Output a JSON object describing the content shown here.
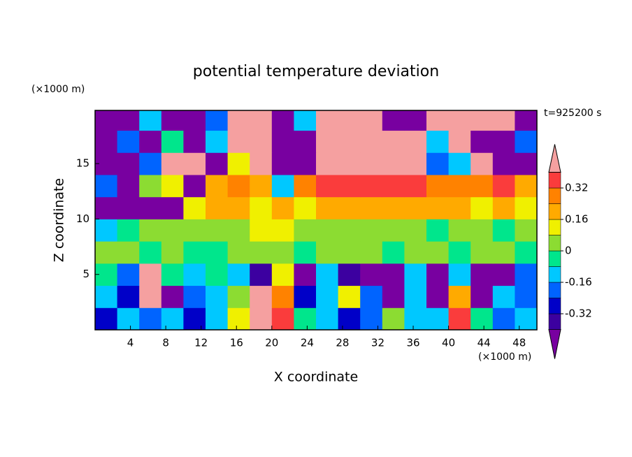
{
  "chart_data": {
    "type": "contour",
    "title": "potential temperature deviation",
    "x_label": "X coordinate",
    "y_label": "Z coordinate",
    "x_unit": "(×1000 m)",
    "y_unit": "(×1000 m)",
    "time_label": "t=925200 s",
    "xlim": [
      0,
      50
    ],
    "ylim": [
      0,
      19.8
    ],
    "xticks": [
      4,
      8,
      12,
      16,
      20,
      24,
      28,
      32,
      36,
      40,
      44,
      48
    ],
    "yticks": [
      5,
      10,
      15
    ],
    "x_edges": [
      0,
      2.5,
      5,
      7.5,
      10,
      12.5,
      15,
      17.5,
      20,
      22.5,
      25,
      27.5,
      30,
      32.5,
      35,
      37.5,
      40,
      42.5,
      45,
      47.5,
      50
    ],
    "z_edges": [
      0,
      2,
      4,
      6,
      8,
      10,
      12,
      14,
      16,
      18,
      19.8
    ],
    "z": [
      [
        -0.28,
        -0.12,
        -0.2,
        -0.12,
        -0.28,
        -0.12,
        0.12,
        0.5,
        0.36,
        -0.04,
        -0.12,
        -0.28,
        -0.2,
        0.04,
        -0.12,
        -0.12,
        0.36,
        -0.04,
        -0.2,
        -0.12
      ],
      [
        -0.12,
        -0.28,
        0.5,
        -0.5,
        -0.2,
        -0.12,
        0.04,
        0.5,
        0.28,
        -0.28,
        -0.12,
        0.12,
        -0.2,
        -0.5,
        -0.12,
        -0.5,
        0.2,
        -0.5,
        -0.12,
        -0.2
      ],
      [
        -0.04,
        -0.2,
        0.5,
        -0.04,
        -0.12,
        -0.04,
        -0.12,
        -0.36,
        0.12,
        -0.5,
        -0.12,
        -0.36,
        -0.5,
        -0.5,
        -0.12,
        -0.5,
        -0.12,
        -0.5,
        -0.5,
        -0.2
      ],
      [
        0.04,
        0.04,
        -0.04,
        0.04,
        -0.04,
        -0.04,
        0.04,
        0.04,
        0.04,
        -0.04,
        0.04,
        0.04,
        0.04,
        -0.04,
        0.04,
        0.04,
        -0.04,
        0.04,
        0.04,
        -0.04
      ],
      [
        -0.12,
        -0.04,
        0.04,
        0.04,
        0.04,
        0.04,
        0.04,
        0.12,
        0.12,
        0.04,
        0.04,
        0.04,
        0.04,
        0.04,
        0.04,
        -0.04,
        0.04,
        0.04,
        -0.04,
        0.04
      ],
      [
        -0.5,
        -0.5,
        -0.5,
        -0.5,
        0.12,
        0.2,
        0.2,
        0.12,
        0.2,
        0.12,
        0.2,
        0.2,
        0.2,
        0.2,
        0.2,
        0.2,
        0.2,
        0.12,
        0.2,
        0.12
      ],
      [
        -0.2,
        -0.5,
        0.04,
        0.12,
        -0.5,
        0.2,
        0.28,
        0.2,
        -0.12,
        0.28,
        0.36,
        0.36,
        0.36,
        0.36,
        0.36,
        0.28,
        0.28,
        0.28,
        0.36,
        0.2
      ],
      [
        -0.5,
        -0.5,
        -0.2,
        0.5,
        0.5,
        -0.5,
        0.12,
        0.5,
        -0.5,
        -0.5,
        0.5,
        0.5,
        0.5,
        0.5,
        0.5,
        -0.2,
        -0.12,
        0.5,
        -0.5,
        -0.5
      ],
      [
        -0.5,
        -0.2,
        -0.5,
        -0.04,
        -0.5,
        -0.12,
        0.5,
        0.5,
        -0.5,
        -0.5,
        0.5,
        0.5,
        0.5,
        0.5,
        0.5,
        -0.12,
        0.5,
        -0.5,
        -0.5,
        -0.2
      ],
      [
        -0.5,
        -0.5,
        -0.12,
        -0.5,
        -0.5,
        -0.2,
        0.5,
        0.5,
        -0.5,
        -0.12,
        0.5,
        0.5,
        0.5,
        -0.5,
        -0.5,
        0.5,
        0.5,
        0.5,
        0.5,
        -0.5
      ]
    ],
    "levels": [
      -0.4,
      -0.32,
      -0.24,
      -0.16,
      -0.08,
      0,
      0.08,
      0.16,
      0.24,
      0.32,
      0.4
    ],
    "colors": [
      "#7800a0",
      "#3c00a0",
      "#0000c8",
      "#0064ff",
      "#00c8ff",
      "#00e68c",
      "#8cdc32",
      "#f0f000",
      "#ffaa00",
      "#ff8200",
      "#fa3c3c",
      "#f5a0a0"
    ],
    "colorbar_ticks": [
      -0.32,
      -0.16,
      0,
      0.16,
      0.32
    ]
  }
}
